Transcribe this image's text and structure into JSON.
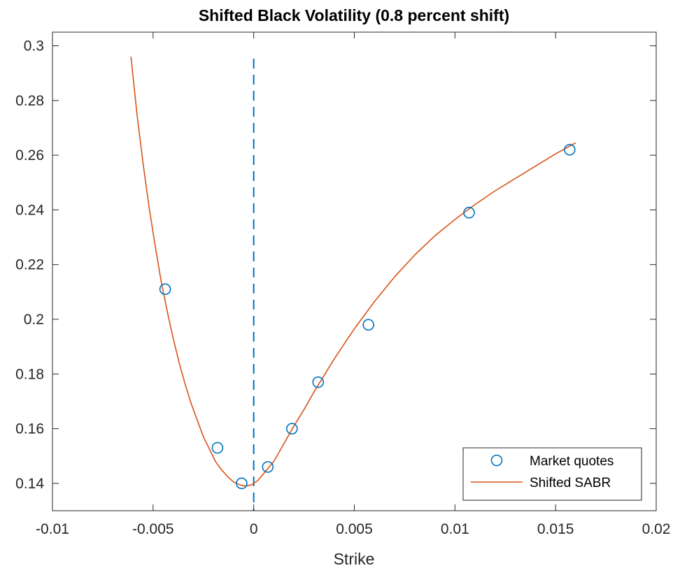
{
  "chart_data": {
    "type": "line",
    "title": "Shifted Black Volatility (0.8 percent shift)",
    "xlabel": "Strike",
    "ylabel": "",
    "xlim": [
      -0.01,
      0.02
    ],
    "ylim": [
      0.13,
      0.305
    ],
    "xticks": [
      -0.01,
      -0.005,
      0,
      0.005,
      0.01,
      0.015,
      0.02
    ],
    "xtick_labels": [
      "-0.01",
      "-0.005",
      "0",
      "0.005",
      "0.01",
      "0.015",
      "0.02"
    ],
    "yticks": [
      0.14,
      0.16,
      0.18,
      0.2,
      0.22,
      0.24,
      0.26,
      0.28,
      0.3
    ],
    "ytick_labels": [
      "0.14",
      "0.16",
      "0.18",
      "0.2",
      "0.22",
      "0.24",
      "0.26",
      "0.28",
      "0.3"
    ],
    "grid": false,
    "legend_position": "bottom-right",
    "reference_line": {
      "x": 0,
      "style": "dashed",
      "color": "#0072BD"
    },
    "series": [
      {
        "name": "Market quotes",
        "kind": "scatter",
        "marker": "circle-open",
        "color": "#0072BD",
        "x": [
          -0.0044,
          -0.0018,
          -0.0006,
          0.0007,
          0.0019,
          0.0032,
          0.0057,
          0.0107,
          0.0157
        ],
        "y": [
          0.211,
          0.153,
          0.14,
          0.146,
          0.16,
          0.177,
          0.198,
          0.239,
          0.262
        ]
      },
      {
        "name": "Shifted SABR",
        "kind": "line",
        "color": "#D95319",
        "x": [
          -0.0061,
          -0.0058,
          -0.0055,
          -0.0052,
          -0.0049,
          -0.0046,
          -0.0043,
          -0.004,
          -0.0037,
          -0.0034,
          -0.0031,
          -0.0028,
          -0.0025,
          -0.0022,
          -0.0019,
          -0.0016,
          -0.0013,
          -0.001,
          -0.0007,
          -0.0004,
          -0.0001,
          0.0002,
          0.0006,
          0.001,
          0.0015,
          0.002,
          0.0025,
          0.003,
          0.0035,
          0.004,
          0.0045,
          0.005,
          0.0055,
          0.006,
          0.007,
          0.008,
          0.009,
          0.01,
          0.011,
          0.012,
          0.013,
          0.014,
          0.015,
          0.016
        ],
        "y": [
          0.296,
          0.275,
          0.257,
          0.241,
          0.227,
          0.214,
          0.203,
          0.193,
          0.184,
          0.176,
          0.169,
          0.163,
          0.157,
          0.1525,
          0.148,
          0.145,
          0.1425,
          0.1405,
          0.1395,
          0.139,
          0.1395,
          0.141,
          0.1445,
          0.148,
          0.1545,
          0.161,
          0.167,
          0.1735,
          0.1795,
          0.1855,
          0.191,
          0.1965,
          0.2015,
          0.2065,
          0.2155,
          0.2235,
          0.2305,
          0.2365,
          0.242,
          0.247,
          0.2515,
          0.256,
          0.2605,
          0.2645
        ]
      }
    ]
  }
}
